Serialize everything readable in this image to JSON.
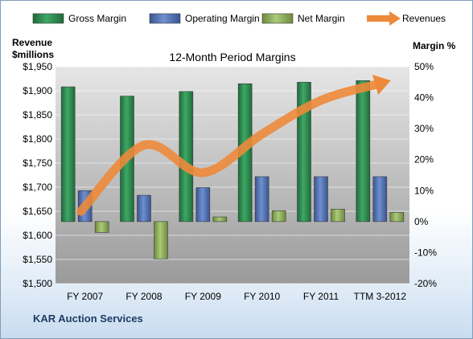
{
  "footer": {
    "company": "KAR Auction Services"
  },
  "chart_data": {
    "type": "bar",
    "title": "12-Month Period Margins",
    "ylabel_left": "Revenue\n$millions",
    "ylabel_right": "Margin %",
    "categories": [
      "FY 2007",
      "FY 2008",
      "FY 2009",
      "FY 2010",
      "FY 2011",
      "TTM 3-2012"
    ],
    "left_axis": {
      "min": 1500,
      "max": 1950,
      "step": 50,
      "tick_labels": [
        "$1,500",
        "$1,550",
        "$1,600",
        "$1,650",
        "$1,700",
        "$1,750",
        "$1,800",
        "$1,850",
        "$1,900",
        "$1,950"
      ]
    },
    "right_axis": {
      "min": -20,
      "max": 50,
      "step": 10,
      "tick_labels": [
        "-20%",
        "-10%",
        "0%",
        "10%",
        "20%",
        "30%",
        "40%",
        "50%"
      ]
    },
    "series": [
      {
        "name": "Gross Margin",
        "type": "bar",
        "axis": "right",
        "color": "#2e8b4f",
        "values": [
          43.5,
          40.5,
          42.0,
          44.5,
          45.0,
          45.5
        ]
      },
      {
        "name": "Operating Margin",
        "type": "bar",
        "axis": "right",
        "color": "#4f6fb0",
        "values": [
          10.0,
          8.5,
          11.0,
          14.5,
          14.5,
          14.5
        ]
      },
      {
        "name": "Net Margin",
        "type": "bar",
        "axis": "right",
        "color": "#8fb05a",
        "values": [
          -3.5,
          -12.0,
          1.5,
          3.5,
          4.0,
          3.0
        ]
      },
      {
        "name": "Revenues",
        "type": "line",
        "axis": "left",
        "color": "#ed8a3a",
        "values": [
          1650,
          1787,
          1730,
          1810,
          1880,
          1915
        ]
      }
    ],
    "grid": true,
    "legend": "top"
  }
}
